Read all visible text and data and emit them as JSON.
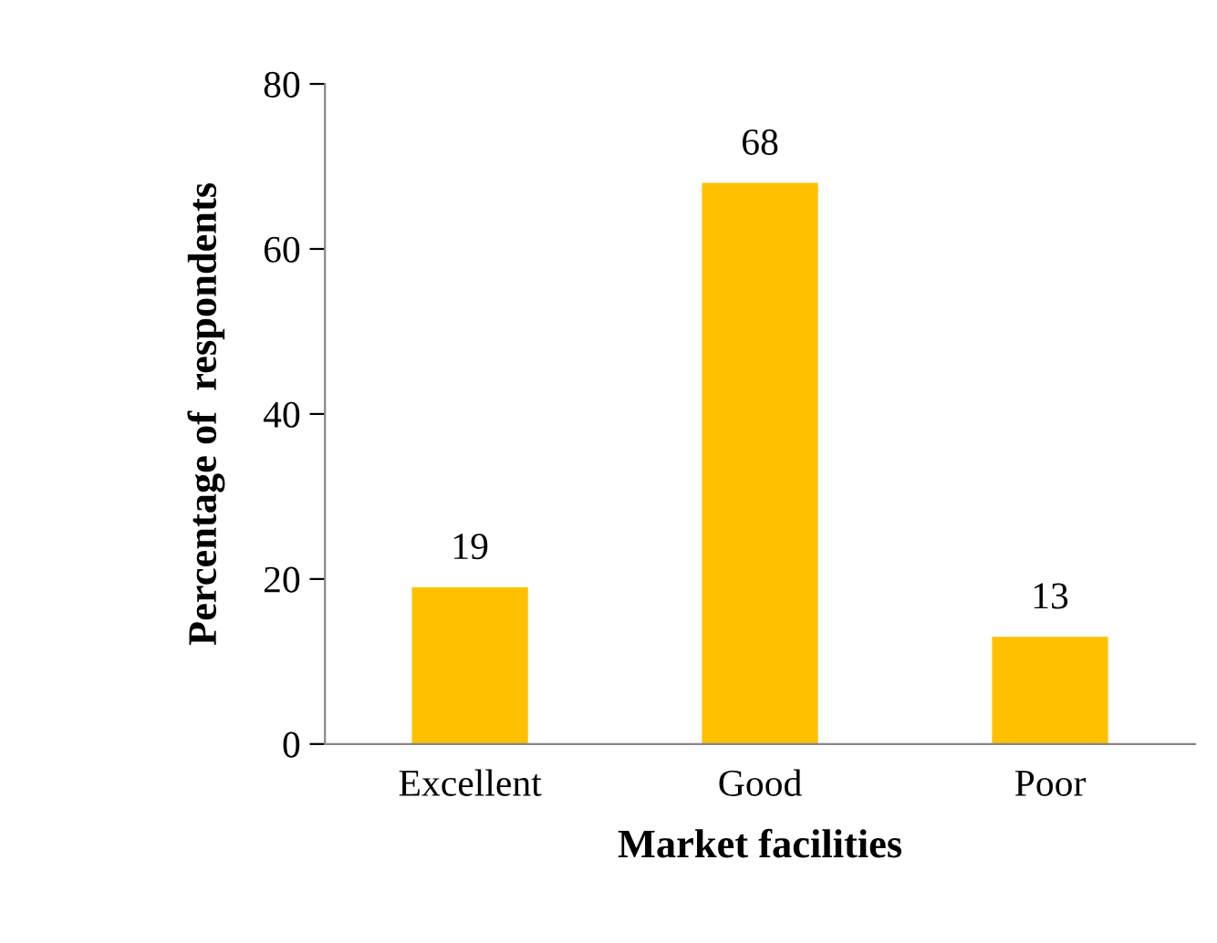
{
  "chart_data": {
    "type": "bar",
    "xlabel": "Market facilities",
    "ylabel": "Percentage of  respondents",
    "categories": [
      "Excellent",
      "Good",
      "Poor"
    ],
    "values": [
      19,
      68,
      13
    ],
    "color": "#ffc000",
    "ylim": [
      0,
      80
    ],
    "yticks": [
      0,
      20,
      40,
      60,
      80
    ],
    "data_labels": true,
    "grid": false,
    "legend": false
  }
}
